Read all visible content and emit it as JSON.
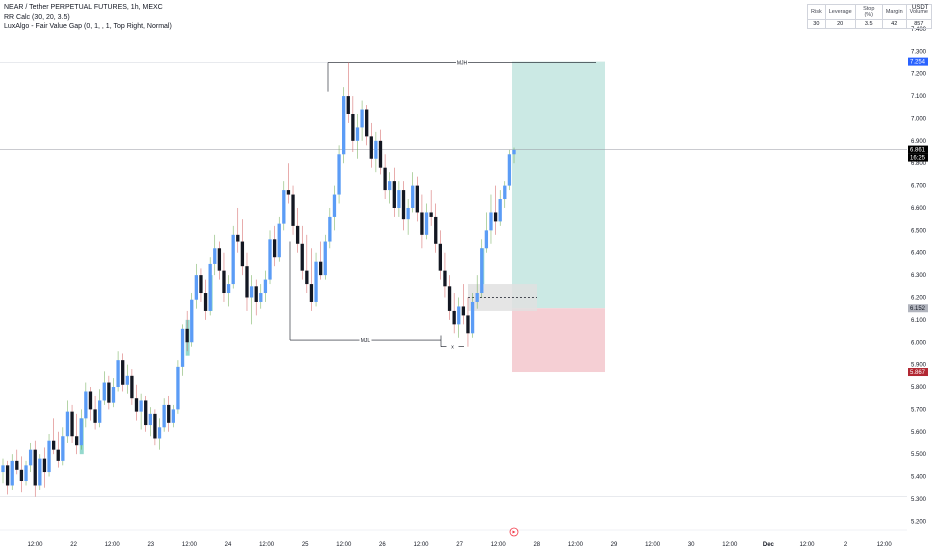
{
  "legend": {
    "symbol_line": "NEAR / Tether PERPETUAL FUTURES, 1h, MEXC",
    "indicator_1": "RR Calc (30, 20, 3.5)",
    "indicator_2": "LuxAlgo - Fair Value Gap (0, 1, , 1, Top Right, Normal)"
  },
  "stats": {
    "headers": [
      "Risk",
      "Leverage",
      "Stop (%)",
      "Margin",
      "Volume"
    ],
    "values": [
      "30",
      "20",
      "3.5",
      "42",
      "857"
    ]
  },
  "currency": "USDT",
  "colors": {
    "bull": "#5b9cf6",
    "bear": "#131722",
    "fvg_bull": "#79d0c0",
    "fvg_bear": "#b3e0d8",
    "target_zone": "#cbe9e4",
    "stop_zone": "#f5cfd4",
    "entry_zone": "#e0e0e0",
    "last_price_tag": "#000000",
    "target_tag": "#2962ff",
    "entry_tag": "#b2b5be",
    "stop_tag": "#b22833"
  },
  "chart_data": {
    "type": "candlestick",
    "title": "NEAR / Tether PERPETUAL FUTURES, 1h, MEXC",
    "xlabel": "",
    "ylabel": "",
    "ylim": [
      5.17,
      7.44
    ],
    "y_ticks": [
      5.2,
      5.3,
      5.4,
      5.5,
      5.6,
      5.7,
      5.8,
      5.9,
      6.0,
      6.1,
      6.2,
      6.3,
      6.4,
      6.5,
      6.6,
      6.7,
      6.8,
      6.9,
      7.0,
      7.1,
      7.2,
      7.3,
      7.4
    ],
    "y_tick_labels": [
      "5.200",
      "5.300",
      "5.400",
      "5.500",
      "5.600",
      "5.700",
      "5.800",
      "5.900",
      "6.000",
      "6.100",
      "6.200",
      "6.300",
      "6.400",
      "6.500",
      "6.600",
      "6.700",
      "6.800",
      "6.900",
      "7.000",
      "7.100",
      "7.200",
      "7.300",
      "7.400"
    ],
    "x_tick_labels": [
      "12:00",
      "22",
      "12:00",
      "23",
      "12:00",
      "24",
      "12:00",
      "25",
      "12:00",
      "26",
      "12:00",
      "27",
      "12:00",
      "28",
      "12:00",
      "29",
      "12:00",
      "30",
      "12:00",
      "Dec",
      "12:00",
      "2",
      "12:00"
    ],
    "grid": false,
    "candles_ohlc": [
      [
        5.42,
        5.48,
        5.37,
        5.45
      ],
      [
        5.45,
        5.47,
        5.32,
        5.36
      ],
      [
        5.36,
        5.5,
        5.34,
        5.47
      ],
      [
        5.47,
        5.52,
        5.41,
        5.43
      ],
      [
        5.43,
        5.49,
        5.33,
        5.38
      ],
      [
        5.38,
        5.47,
        5.36,
        5.45
      ],
      [
        5.45,
        5.55,
        5.42,
        5.52
      ],
      [
        5.52,
        5.56,
        5.31,
        5.36
      ],
      [
        5.36,
        5.5,
        5.34,
        5.48
      ],
      [
        5.48,
        5.53,
        5.35,
        5.42
      ],
      [
        5.42,
        5.59,
        5.4,
        5.56
      ],
      [
        5.56,
        5.66,
        5.5,
        5.52
      ],
      [
        5.52,
        5.6,
        5.44,
        5.47
      ],
      [
        5.47,
        5.62,
        5.45,
        5.58
      ],
      [
        5.58,
        5.74,
        5.55,
        5.69
      ],
      [
        5.69,
        5.72,
        5.55,
        5.58
      ],
      [
        5.58,
        5.68,
        5.5,
        5.54
      ],
      [
        5.54,
        5.7,
        5.52,
        5.66
      ],
      [
        5.66,
        5.82,
        5.62,
        5.78
      ],
      [
        5.78,
        5.8,
        5.65,
        5.7
      ],
      [
        5.7,
        5.76,
        5.61,
        5.64
      ],
      [
        5.64,
        5.79,
        5.62,
        5.74
      ],
      [
        5.74,
        5.87,
        5.72,
        5.82
      ],
      [
        5.82,
        5.85,
        5.7,
        5.73
      ],
      [
        5.73,
        5.84,
        5.71,
        5.8
      ],
      [
        5.8,
        5.96,
        5.78,
        5.92
      ],
      [
        5.92,
        5.95,
        5.78,
        5.81
      ],
      [
        5.81,
        5.9,
        5.77,
        5.85
      ],
      [
        5.85,
        5.88,
        5.72,
        5.75
      ],
      [
        5.75,
        5.81,
        5.65,
        5.69
      ],
      [
        5.69,
        5.77,
        5.61,
        5.74
      ],
      [
        5.74,
        5.76,
        5.6,
        5.63
      ],
      [
        5.63,
        5.71,
        5.58,
        5.68
      ],
      [
        5.68,
        5.7,
        5.54,
        5.57
      ],
      [
        5.57,
        5.66,
        5.52,
        5.62
      ],
      [
        5.62,
        5.75,
        5.6,
        5.72
      ],
      [
        5.72,
        5.76,
        5.6,
        5.64
      ],
      [
        5.64,
        5.72,
        5.62,
        5.7
      ],
      [
        5.7,
        5.92,
        5.68,
        5.89
      ],
      [
        5.89,
        6.08,
        5.85,
        6.06
      ],
      [
        6.06,
        6.14,
        5.96,
        6.0
      ],
      [
        6.0,
        6.22,
        5.98,
        6.19
      ],
      [
        6.19,
        6.35,
        6.15,
        6.3
      ],
      [
        6.3,
        6.33,
        6.18,
        6.22
      ],
      [
        6.22,
        6.28,
        6.1,
        6.14
      ],
      [
        6.14,
        6.38,
        6.12,
        6.35
      ],
      [
        6.35,
        6.48,
        6.3,
        6.42
      ],
      [
        6.42,
        6.45,
        6.28,
        6.32
      ],
      [
        6.32,
        6.4,
        6.18,
        6.22
      ],
      [
        6.22,
        6.3,
        6.16,
        6.26
      ],
      [
        6.26,
        6.52,
        6.24,
        6.48
      ],
      [
        6.48,
        6.6,
        6.4,
        6.45
      ],
      [
        6.45,
        6.55,
        6.3,
        6.34
      ],
      [
        6.34,
        6.4,
        6.14,
        6.2
      ],
      [
        6.2,
        6.3,
        6.08,
        6.25
      ],
      [
        6.25,
        6.28,
        6.12,
        6.18
      ],
      [
        6.18,
        6.26,
        6.15,
        6.22
      ],
      [
        6.22,
        6.32,
        6.18,
        6.28
      ],
      [
        6.28,
        6.5,
        6.26,
        6.46
      ],
      [
        6.46,
        6.52,
        6.34,
        6.38
      ],
      [
        6.38,
        6.56,
        6.36,
        6.53
      ],
      [
        6.53,
        6.72,
        6.5,
        6.68
      ],
      [
        6.68,
        6.8,
        6.62,
        6.66
      ],
      [
        6.66,
        6.7,
        6.48,
        6.52
      ],
      [
        6.52,
        6.6,
        6.4,
        6.44
      ],
      [
        6.44,
        6.52,
        6.28,
        6.32
      ],
      [
        6.32,
        6.48,
        6.22,
        6.26
      ],
      [
        6.26,
        6.42,
        6.14,
        6.18
      ],
      [
        6.18,
        6.4,
        6.16,
        6.36
      ],
      [
        6.36,
        6.45,
        6.28,
        6.3
      ],
      [
        6.3,
        6.48,
        6.28,
        6.45
      ],
      [
        6.45,
        6.6,
        6.42,
        6.56
      ],
      [
        6.56,
        6.7,
        6.5,
        6.66
      ],
      [
        6.66,
        6.88,
        6.62,
        6.84
      ],
      [
        6.84,
        7.14,
        6.8,
        7.1
      ],
      [
        7.1,
        7.25,
        6.98,
        7.02
      ],
      [
        7.02,
        7.1,
        6.85,
        6.9
      ],
      [
        6.9,
        7.02,
        6.82,
        6.96
      ],
      [
        6.96,
        7.08,
        6.9,
        7.04
      ],
      [
        7.04,
        7.06,
        6.88,
        6.92
      ],
      [
        6.92,
        6.98,
        6.78,
        6.82
      ],
      [
        6.82,
        6.94,
        6.76,
        6.9
      ],
      [
        6.9,
        6.95,
        6.75,
        6.78
      ],
      [
        6.78,
        6.84,
        6.64,
        6.68
      ],
      [
        6.68,
        6.76,
        6.62,
        6.72
      ],
      [
        6.72,
        6.78,
        6.56,
        6.6
      ],
      [
        6.6,
        6.72,
        6.56,
        6.68
      ],
      [
        6.68,
        6.72,
        6.5,
        6.55
      ],
      [
        6.55,
        6.64,
        6.48,
        6.6
      ],
      [
        6.6,
        6.76,
        6.58,
        6.7
      ],
      [
        6.7,
        6.74,
        6.54,
        6.58
      ],
      [
        6.58,
        6.66,
        6.42,
        6.48
      ],
      [
        6.48,
        6.62,
        6.46,
        6.58
      ],
      [
        6.58,
        6.68,
        6.52,
        6.56
      ],
      [
        6.56,
        6.62,
        6.4,
        6.44
      ],
      [
        6.44,
        6.5,
        6.28,
        6.32
      ],
      [
        6.32,
        6.4,
        6.2,
        6.25
      ],
      [
        6.25,
        6.3,
        6.1,
        6.14
      ],
      [
        6.14,
        6.22,
        6.04,
        6.08
      ],
      [
        6.08,
        6.2,
        6.02,
        6.16
      ],
      [
        6.16,
        6.26,
        6.08,
        6.12
      ],
      [
        6.12,
        6.2,
        5.98,
        6.04
      ],
      [
        6.04,
        6.22,
        6.02,
        6.18
      ],
      [
        6.18,
        6.3,
        6.15,
        6.22
      ],
      [
        6.22,
        6.46,
        6.2,
        6.42
      ],
      [
        6.42,
        6.58,
        6.4,
        6.5
      ],
      [
        6.5,
        6.66,
        6.44,
        6.58
      ],
      [
        6.58,
        6.7,
        6.48,
        6.54
      ],
      [
        6.54,
        6.68,
        6.52,
        6.64
      ],
      [
        6.64,
        6.72,
        6.6,
        6.7
      ],
      [
        6.7,
        6.86,
        6.68,
        6.84
      ],
      [
        6.84,
        6.87,
        6.8,
        6.86
      ]
    ],
    "levels": [
      {
        "label": "MJH",
        "value": 7.25
      },
      {
        "label": "MJL",
        "value": 6.01
      },
      {
        "label": "x",
        "value": 5.98
      }
    ],
    "position": {
      "target": 7.254,
      "entry": 6.152,
      "stop": 5.867
    },
    "price_tags": [
      {
        "text": "7.254",
        "value": 7.254,
        "kind": "target"
      },
      {
        "text": "6.861",
        "value": 6.861,
        "kind": "last"
      },
      {
        "text": "16:25",
        "value": 6.861,
        "kind": "countdown"
      },
      {
        "text": "6.152",
        "value": 6.152,
        "kind": "entry"
      },
      {
        "text": "5.867",
        "value": 5.867,
        "kind": "stop"
      }
    ]
  }
}
